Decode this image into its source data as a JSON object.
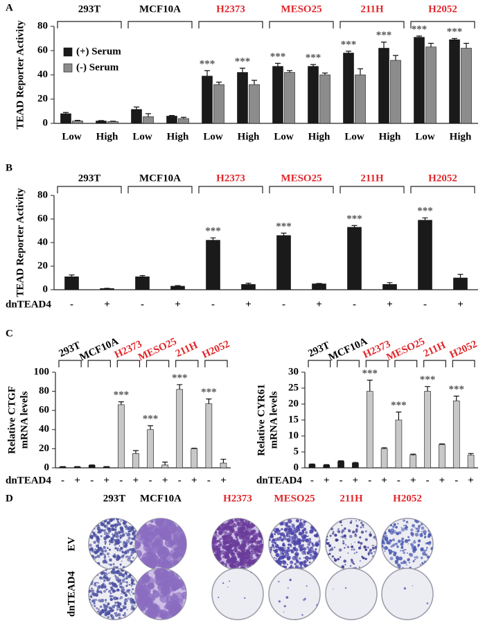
{
  "panel_labels": [
    "A",
    "B",
    "C",
    "D"
  ],
  "chart_data": [
    {
      "type": "bar",
      "ylabel": [
        "TEAD Reporter Activity"
      ],
      "categories": [
        "Low",
        "High",
        "Low",
        "High",
        "Low",
        "High",
        "Low",
        "High",
        "Low",
        "High",
        "Low",
        "High"
      ],
      "groups": [
        {
          "name": "293T",
          "color": "#000000"
        },
        {
          "name": "MCF10A",
          "color": "#000000"
        },
        {
          "name": "H2373",
          "color": "#e0262a"
        },
        {
          "name": "MESO25",
          "color": "#e0262a"
        },
        {
          "name": "211H",
          "color": "#e0262a"
        },
        {
          "name": "H2052",
          "color": "#e0262a"
        }
      ],
      "series": [
        {
          "name": "(+) Serum",
          "color": "#1a1a1a",
          "values": [
            8,
            2,
            11.5,
            6,
            39,
            42,
            47,
            47,
            58,
            62,
            71,
            69
          ],
          "errors": [
            1,
            0.3,
            2,
            0.5,
            4.5,
            3.5,
            2.5,
            1.5,
            1.5,
            5,
            1,
            1
          ],
          "annotations": [
            null,
            null,
            null,
            null,
            "***",
            "***",
            "***",
            "***",
            "***",
            "***",
            "***",
            "***"
          ]
        },
        {
          "name": "(-) Serum",
          "color": "#8c8c8c",
          "values": [
            2,
            1.5,
            5.5,
            4,
            32,
            32,
            42,
            40,
            40,
            52,
            63,
            62
          ],
          "errors": [
            0.5,
            0.3,
            2.5,
            1,
            2,
            3.5,
            1.5,
            1.5,
            5,
            4,
            3,
            4
          ]
        }
      ],
      "ylim": [
        0,
        80
      ],
      "yticks": [
        0,
        20,
        40,
        60,
        80
      ],
      "legend": "upper left"
    },
    {
      "type": "bar",
      "ylabel": [
        "TEAD Reporter Activity"
      ],
      "xlabel": "dnTEAD4",
      "categories": [
        "-",
        "+",
        "-",
        "+",
        "-",
        "+",
        "-",
        "+",
        "-",
        "+",
        "-",
        "+"
      ],
      "groups": [
        {
          "name": "293T",
          "color": "#000000"
        },
        {
          "name": "MCF10A",
          "color": "#000000"
        },
        {
          "name": "H2373",
          "color": "#e0262a"
        },
        {
          "name": "MESO25",
          "color": "#e0262a"
        },
        {
          "name": "211H",
          "color": "#e0262a"
        },
        {
          "name": "H2052",
          "color": "#e0262a"
        }
      ],
      "series": [
        {
          "color": "#1a1a1a",
          "values": [
            11,
            1,
            11,
            3,
            42,
            4.5,
            46,
            5,
            53,
            4.5,
            59,
            10
          ],
          "errors": [
            1.5,
            0.2,
            1,
            0.5,
            2,
            1,
            2,
            0.3,
            1.5,
            1.5,
            2,
            3
          ],
          "annotations": [
            null,
            null,
            null,
            null,
            "***",
            null,
            "***",
            null,
            "***",
            null,
            "***",
            null
          ]
        }
      ],
      "ylim": [
        0,
        80
      ],
      "yticks": [
        0,
        20,
        40,
        60,
        80
      ]
    },
    {
      "type": "bar",
      "ylabel": [
        "Relative CTGF",
        "mRNA levels"
      ],
      "xlabel": "dnTEAD4",
      "categories": [
        "-",
        "+",
        "-",
        "+",
        "-",
        "+",
        "-",
        "+",
        "-",
        "+",
        "-",
        "+"
      ],
      "groups": [
        {
          "name": "293T",
          "color": "#000000"
        },
        {
          "name": "MCF10A",
          "color": "#000000"
        },
        {
          "name": "H2373",
          "color": "#e0262a"
        },
        {
          "name": "MESO25",
          "color": "#e0262a"
        },
        {
          "name": "211H",
          "color": "#e0262a"
        },
        {
          "name": "H2052",
          "color": "#e0262a"
        }
      ],
      "series": [
        {
          "colors": [
            "#1a1a1a",
            "#1a1a1a",
            "#1a1a1a",
            "#1a1a1a",
            "#c8c8c8",
            "#c8c8c8",
            "#c8c8c8",
            "#c8c8c8",
            "#c8c8c8",
            "#c8c8c8",
            "#c8c8c8",
            "#c8c8c8"
          ],
          "values": [
            1,
            1,
            2.5,
            1,
            66,
            15,
            40,
            3,
            82,
            20,
            67,
            5
          ],
          "errors": [
            0.3,
            0.3,
            0.5,
            0.3,
            3,
            3,
            4,
            3,
            5,
            0.5,
            5,
            4
          ],
          "annotations": [
            null,
            null,
            null,
            null,
            "***",
            null,
            "***",
            null,
            "***",
            null,
            "***",
            null
          ]
        }
      ],
      "ylim": [
        0,
        100
      ],
      "yticks": [
        0,
        20,
        40,
        60,
        80,
        100
      ]
    },
    {
      "type": "bar",
      "ylabel": [
        "Relative CYR61",
        "mRNA levels"
      ],
      "xlabel": "dnTEAD4",
      "categories": [
        "-",
        "+",
        "-",
        "+",
        "-",
        "+",
        "-",
        "+",
        "-",
        "+",
        "-",
        "+"
      ],
      "groups": [
        {
          "name": "293T",
          "color": "#000000"
        },
        {
          "name": "MCF10A",
          "color": "#000000"
        },
        {
          "name": "H2373",
          "color": "#e0262a"
        },
        {
          "name": "MESO25",
          "color": "#e0262a"
        },
        {
          "name": "211H",
          "color": "#e0262a"
        },
        {
          "name": "H2052",
          "color": "#e0262a"
        }
      ],
      "series": [
        {
          "colors": [
            "#1a1a1a",
            "#1a1a1a",
            "#1a1a1a",
            "#1a1a1a",
            "#c8c8c8",
            "#c8c8c8",
            "#c8c8c8",
            "#c8c8c8",
            "#c8c8c8",
            "#c8c8c8",
            "#c8c8c8",
            "#c8c8c8"
          ],
          "values": [
            1,
            0.8,
            2,
            1.5,
            24,
            6,
            15,
            4,
            24,
            7.3,
            21,
            4
          ],
          "errors": [
            0.2,
            0.2,
            0.2,
            0.2,
            3.5,
            0.3,
            2.5,
            0.3,
            1.5,
            0.2,
            1.5,
            0.5
          ],
          "annotations": [
            null,
            null,
            null,
            null,
            "***",
            null,
            "***",
            null,
            "***",
            null,
            "***",
            null
          ]
        }
      ],
      "ylim": [
        0,
        30
      ],
      "yticks": [
        0,
        5,
        10,
        15,
        20,
        25,
        30
      ]
    }
  ],
  "colony_assay": {
    "columns": [
      "293T",
      "MCF10A",
      "H2373",
      "MESO25",
      "211H",
      "H2052"
    ],
    "column_colors": [
      "#000000",
      "#000000",
      "#e0262a",
      "#e0262a",
      "#e0262a",
      "#e0262a"
    ],
    "rows": [
      "EV",
      "dnTEAD4"
    ]
  }
}
